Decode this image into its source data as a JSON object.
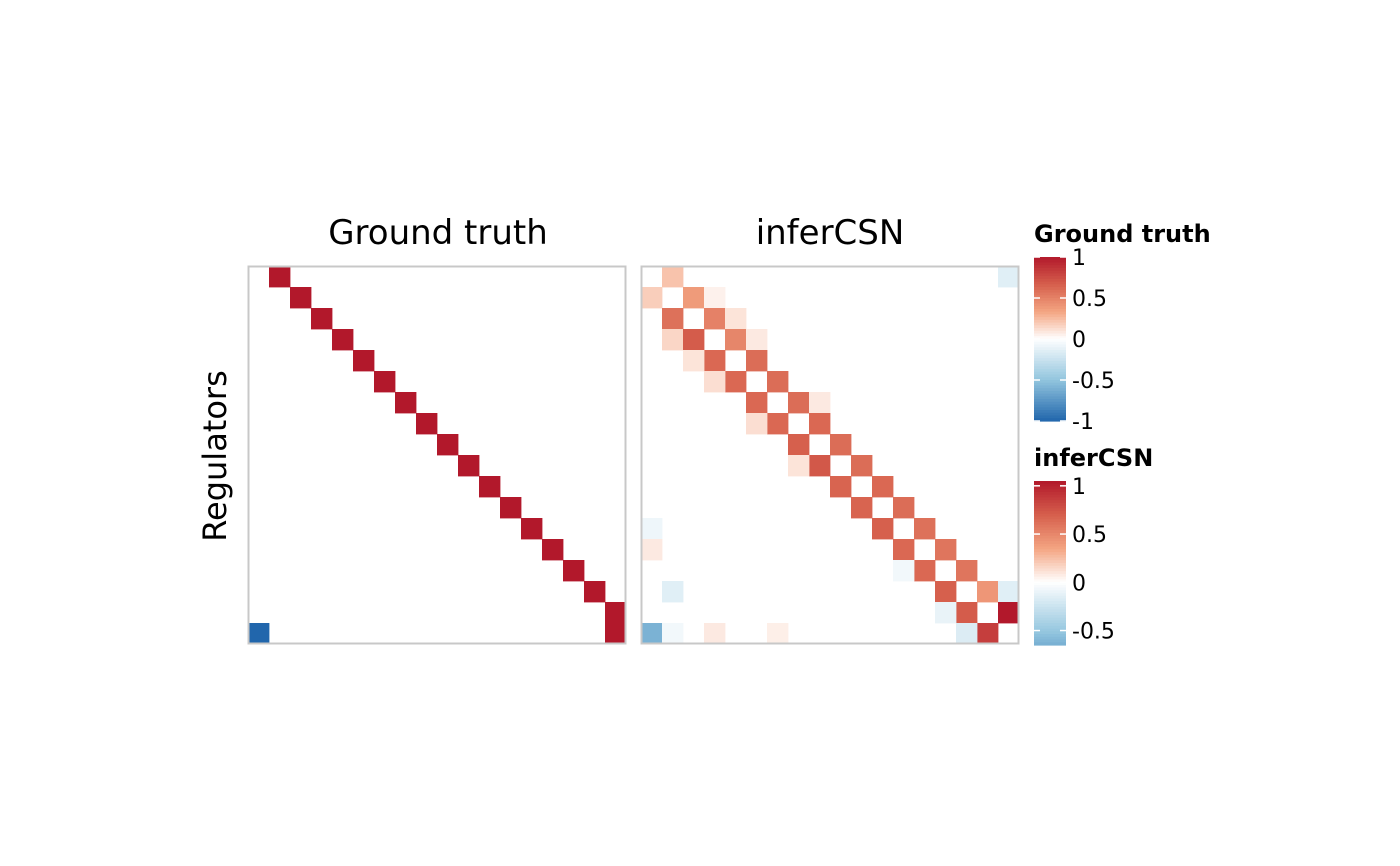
{
  "chart_data": [
    {
      "type": "heatmap",
      "title": "Ground truth",
      "ylabel": "Regulators",
      "xlabel": "",
      "n": 18,
      "legend": {
        "title": "Ground truth",
        "range": [
          -1,
          1
        ],
        "ticks": [
          1,
          0.5,
          0,
          -0.5,
          -1
        ],
        "tick_labels": [
          "1",
          "0.5",
          "0",
          "-0.5",
          "-1"
        ]
      },
      "cells": [
        {
          "row": 0,
          "col": 1,
          "value": 1
        },
        {
          "row": 1,
          "col": 2,
          "value": 1
        },
        {
          "row": 2,
          "col": 3,
          "value": 1
        },
        {
          "row": 3,
          "col": 4,
          "value": 1
        },
        {
          "row": 4,
          "col": 5,
          "value": 1
        },
        {
          "row": 5,
          "col": 6,
          "value": 1
        },
        {
          "row": 6,
          "col": 7,
          "value": 1
        },
        {
          "row": 7,
          "col": 8,
          "value": 1
        },
        {
          "row": 8,
          "col": 9,
          "value": 1
        },
        {
          "row": 9,
          "col": 10,
          "value": 1
        },
        {
          "row": 10,
          "col": 11,
          "value": 1
        },
        {
          "row": 11,
          "col": 12,
          "value": 1
        },
        {
          "row": 12,
          "col": 13,
          "value": 1
        },
        {
          "row": 13,
          "col": 14,
          "value": 1
        },
        {
          "row": 14,
          "col": 15,
          "value": 1
        },
        {
          "row": 15,
          "col": 16,
          "value": 1
        },
        {
          "row": 16,
          "col": 17,
          "value": 1
        },
        {
          "row": 17,
          "col": 17,
          "value": 1
        },
        {
          "row": 17,
          "col": 0,
          "value": -1
        }
      ]
    },
    {
      "type": "heatmap",
      "title": "inferCSN",
      "n": 18,
      "legend": {
        "title": "inferCSN",
        "range": [
          -0.65,
          1.05
        ],
        "ticks": [
          1,
          0.5,
          0,
          -0.5
        ],
        "tick_labels": [
          "1",
          "0.5",
          "0",
          "-0.5"
        ]
      },
      "cells": [
        {
          "row": 0,
          "col": 1,
          "value": 0.22
        },
        {
          "row": 0,
          "col": 17,
          "value": -0.14
        },
        {
          "row": 1,
          "col": 0,
          "value": 0.18
        },
        {
          "row": 1,
          "col": 2,
          "value": 0.38
        },
        {
          "row": 1,
          "col": 3,
          "value": 0.05
        },
        {
          "row": 2,
          "col": 1,
          "value": 0.58
        },
        {
          "row": 2,
          "col": 3,
          "value": 0.5
        },
        {
          "row": 2,
          "col": 4,
          "value": 0.1
        },
        {
          "row": 3,
          "col": 1,
          "value": 0.15
        },
        {
          "row": 3,
          "col": 2,
          "value": 0.68
        },
        {
          "row": 3,
          "col": 4,
          "value": 0.48
        },
        {
          "row": 3,
          "col": 5,
          "value": 0.08
        },
        {
          "row": 4,
          "col": 3,
          "value": 0.62
        },
        {
          "row": 4,
          "col": 5,
          "value": 0.6
        },
        {
          "row": 4,
          "col": 2,
          "value": 0.1
        },
        {
          "row": 5,
          "col": 4,
          "value": 0.62
        },
        {
          "row": 5,
          "col": 6,
          "value": 0.6
        },
        {
          "row": 5,
          "col": 3,
          "value": 0.12
        },
        {
          "row": 6,
          "col": 5,
          "value": 0.62
        },
        {
          "row": 6,
          "col": 7,
          "value": 0.6
        },
        {
          "row": 6,
          "col": 8,
          "value": 0.08
        },
        {
          "row": 7,
          "col": 6,
          "value": 0.62
        },
        {
          "row": 7,
          "col": 8,
          "value": 0.62
        },
        {
          "row": 7,
          "col": 5,
          "value": 0.12
        },
        {
          "row": 8,
          "col": 7,
          "value": 0.66
        },
        {
          "row": 8,
          "col": 9,
          "value": 0.6
        },
        {
          "row": 9,
          "col": 8,
          "value": 0.7
        },
        {
          "row": 9,
          "col": 10,
          "value": 0.6
        },
        {
          "row": 9,
          "col": 7,
          "value": 0.1
        },
        {
          "row": 10,
          "col": 9,
          "value": 0.64
        },
        {
          "row": 10,
          "col": 11,
          "value": 0.62
        },
        {
          "row": 11,
          "col": 10,
          "value": 0.64
        },
        {
          "row": 11,
          "col": 12,
          "value": 0.6
        },
        {
          "row": 12,
          "col": 11,
          "value": 0.66
        },
        {
          "row": 12,
          "col": 13,
          "value": 0.58
        },
        {
          "row": 12,
          "col": 0,
          "value": -0.08
        },
        {
          "row": 13,
          "col": 12,
          "value": 0.62
        },
        {
          "row": 13,
          "col": 14,
          "value": 0.56
        },
        {
          "row": 13,
          "col": 0,
          "value": 0.08
        },
        {
          "row": 14,
          "col": 13,
          "value": 0.62
        },
        {
          "row": 14,
          "col": 15,
          "value": 0.56
        },
        {
          "row": 14,
          "col": 12,
          "value": -0.06
        },
        {
          "row": 15,
          "col": 14,
          "value": 0.66
        },
        {
          "row": 15,
          "col": 16,
          "value": 0.4
        },
        {
          "row": 15,
          "col": 17,
          "value": -0.14
        },
        {
          "row": 15,
          "col": 1,
          "value": -0.14
        },
        {
          "row": 16,
          "col": 15,
          "value": 0.68
        },
        {
          "row": 16,
          "col": 17,
          "value": 1.0
        },
        {
          "row": 16,
          "col": 14,
          "value": -0.1
        },
        {
          "row": 17,
          "col": 0,
          "value": -0.6
        },
        {
          "row": 17,
          "col": 16,
          "value": 0.82
        },
        {
          "row": 17,
          "col": 15,
          "value": -0.16
        },
        {
          "row": 17,
          "col": 1,
          "value": -0.06
        },
        {
          "row": 17,
          "col": 3,
          "value": 0.08
        },
        {
          "row": 17,
          "col": 6,
          "value": 0.06
        }
      ]
    }
  ],
  "colors": {
    "high": "#b2182b",
    "mid_high": "#d6604d",
    "low_pink": "#f4a582",
    "zero": "#ffffff",
    "low_blue": "#92c5de",
    "low": "#2166ac",
    "panel_border": "#c8c8c8"
  }
}
